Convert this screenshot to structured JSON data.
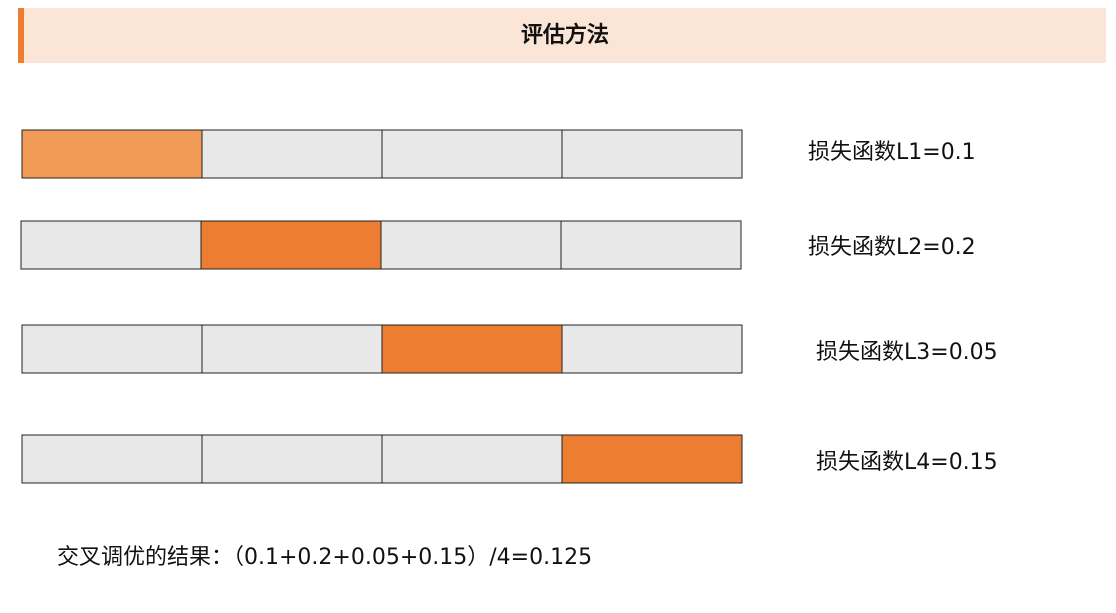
{
  "header": {
    "title": "评估方法"
  },
  "rows": [
    {
      "label": "损失函数L1=0.1"
    },
    {
      "label": "损失函数L2=0.2"
    },
    {
      "label": "损失函数L3=0.05"
    },
    {
      "label": "损失函数L4=0.15"
    }
  ],
  "footer": {
    "text": "交叉调优的结果：（0.1+0.2+0.05+0.15）/4=0.125"
  }
}
